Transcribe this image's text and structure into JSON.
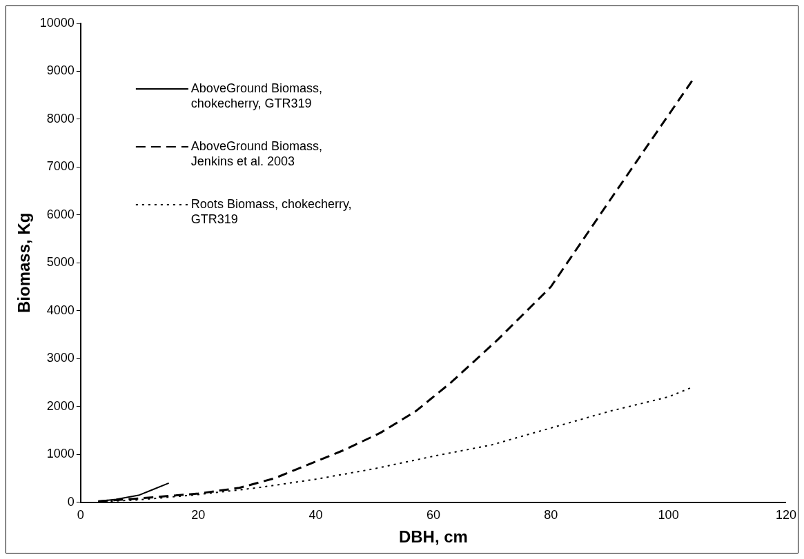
{
  "chart_data": {
    "type": "line",
    "xlabel": "DBH, cm",
    "ylabel": "Biomass, Kg",
    "xlim": [
      0,
      120
    ],
    "xticks": [
      0,
      20,
      40,
      60,
      80,
      100,
      120
    ],
    "ylim": [
      0,
      10000
    ],
    "yticks": [
      0,
      1000,
      2000,
      3000,
      4000,
      5000,
      6000,
      7000,
      8000,
      9000,
      10000
    ],
    "grid": false,
    "legend": "top left",
    "marker": "none",
    "series": [
      {
        "name": "AboveGround Biomass, chokecherry, GTR319",
        "color": "#000000",
        "line_style": "solid",
        "x": [
          3,
          6,
          10,
          12,
          15
        ],
        "values": [
          20,
          60,
          150,
          250,
          400
        ]
      },
      {
        "name": "AboveGround Biomass, Jenkins et al. 2003",
        "color": "#000000",
        "line_style": "dashed",
        "x": [
          3,
          10,
          20,
          27,
          33,
          38,
          45,
          51,
          57,
          63,
          71,
          80,
          90,
          104
        ],
        "values": [
          20,
          80,
          180,
          300,
          500,
          750,
          1100,
          1450,
          1900,
          2500,
          3400,
          4500,
          6300,
          8800
        ]
      },
      {
        "name": "Roots Biomass, chokecherry, GTR319",
        "color": "#000000",
        "line_style": "dotted",
        "x": [
          3,
          10,
          20,
          30,
          40,
          50,
          60,
          70,
          80,
          90,
          100,
          104
        ],
        "values": [
          10,
          50,
          160,
          300,
          480,
          700,
          960,
          1200,
          1550,
          1900,
          2200,
          2400
        ]
      }
    ]
  }
}
